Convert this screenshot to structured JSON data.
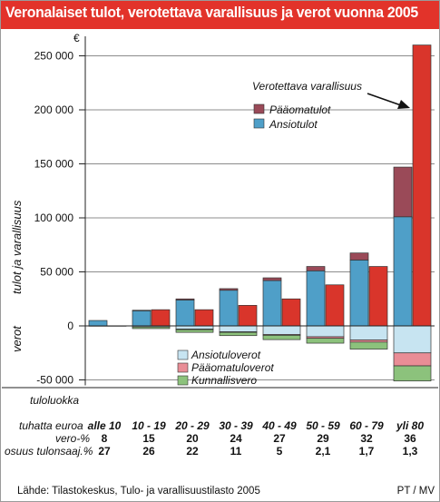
{
  "title": "Veronalaiset tulot, verotettava varallisuus ja verot vuonna 2005",
  "colors": {
    "title_bg": "#e2332a",
    "ansiotulot": "#4f9fc8",
    "paaomatulot": "#9a4a58",
    "varallisuus": "#d9352b",
    "ansiotuloverot": "#c7e4f1",
    "paaomatuloverot": "#e98d96",
    "kunnallisvero": "#8cc27c"
  },
  "chart_data": {
    "type": "bar",
    "unit": "€",
    "ylabel_top": "tulot ja varallisuus",
    "ylabel_bottom": "verot",
    "ylim": [
      -55000,
      265000
    ],
    "yticks": [
      -50000,
      0,
      50000,
      100000,
      150000,
      200000,
      250000
    ],
    "ytick_labels": [
      "-50 000",
      "0",
      "50 000",
      "100 000",
      "150 000",
      "200 000",
      "250 000"
    ],
    "categories": [
      "alle 10",
      "10 - 19",
      "20 - 29",
      "30 - 39",
      "40 - 49",
      "50 - 59",
      "60 - 79",
      "yli 80"
    ],
    "series": [
      {
        "name": "Ansiotulot",
        "stack": "tulot",
        "values": [
          5000,
          14000,
          24000,
          33000,
          42000,
          51000,
          61000,
          101000
        ]
      },
      {
        "name": "Pääomatulot",
        "stack": "tulot",
        "values": [
          0,
          500,
          1000,
          1500,
          2500,
          4000,
          6500,
          46000
        ]
      },
      {
        "name": "Verotettava varallisuus",
        "stack": "varallisuus",
        "values": [
          0,
          15000,
          15000,
          19000,
          25000,
          38000,
          55000,
          260000
        ]
      },
      {
        "name": "Ansiotuloverot",
        "stack": "verot",
        "values": [
          0,
          -1000,
          -3000,
          -5500,
          -8000,
          -10000,
          -13000,
          -25000
        ]
      },
      {
        "name": "Pääomatuloverot",
        "stack": "verot",
        "values": [
          0,
          0,
          -500,
          -500,
          -700,
          -1500,
          -2000,
          -12000
        ]
      },
      {
        "name": "Kunnallisvero",
        "stack": "verot",
        "values": [
          -300,
          -1500,
          -2500,
          -3000,
          -4000,
          -4500,
          -6500,
          -14000
        ]
      }
    ],
    "annotation": "Verotettava varallisuus",
    "legend_upper": [
      "Pääomatulot",
      "Ansiotulot"
    ],
    "legend_lower": [
      "Ansiotuloverot",
      "Pääomatuloverot",
      "Kunnallisvero"
    ]
  },
  "table": {
    "row_labels": {
      "tuloluokka1": "tuloluokka",
      "tuloluokka2": "tuhatta euroa",
      "vero": "vero-%",
      "osuus": "osuus tulonsaaj.%"
    },
    "vero_pct": [
      "8",
      "15",
      "20",
      "24",
      "27",
      "29",
      "32",
      "36"
    ],
    "osuus_pct": [
      "27",
      "26",
      "22",
      "11",
      "5",
      "2,1",
      "1,7",
      "1,3"
    ]
  },
  "source": "Lähde: Tilastokeskus, Tulo- ja varallisuustilasto 2005",
  "credit": "PT / MV"
}
